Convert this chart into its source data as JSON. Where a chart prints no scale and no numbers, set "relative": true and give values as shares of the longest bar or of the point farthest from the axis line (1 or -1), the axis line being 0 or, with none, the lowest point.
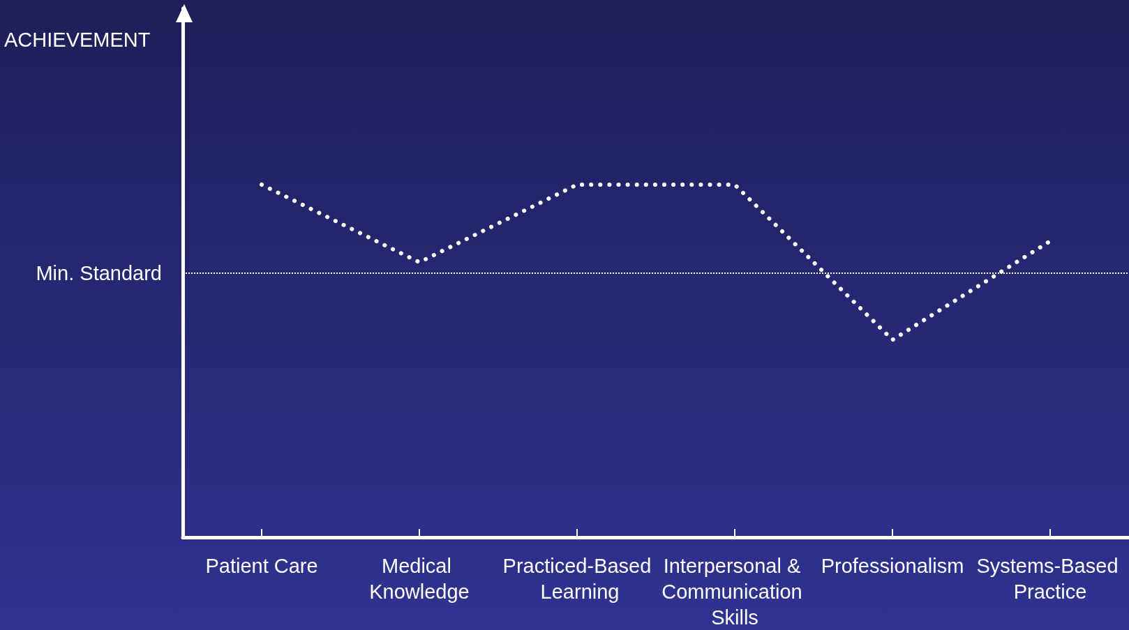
{
  "chart_data": {
    "type": "line",
    "relative": true,
    "annotations": [
      "ACHIEVEMENT"
    ],
    "categories": [
      "Patient Care",
      "Medical Knowledge",
      "Practiced-Based Learning",
      "Interpersonal & Communication Skills",
      "Professionalism",
      "Systems-Based Practice"
    ],
    "series": [
      {
        "color": "#ffffff",
        "values": [
          1,
          0.78,
          1,
          1,
          0.56,
          0.84
        ]
      }
    ],
    "ref_lines": [
      {
        "axis": "y",
        "value": 0.75,
        "label": "Min. Standard",
        "color": "#ffffff",
        "line_style": "dotted"
      }
    ],
    "line_style": "dotted",
    "marker": "none",
    "grid": false
  }
}
